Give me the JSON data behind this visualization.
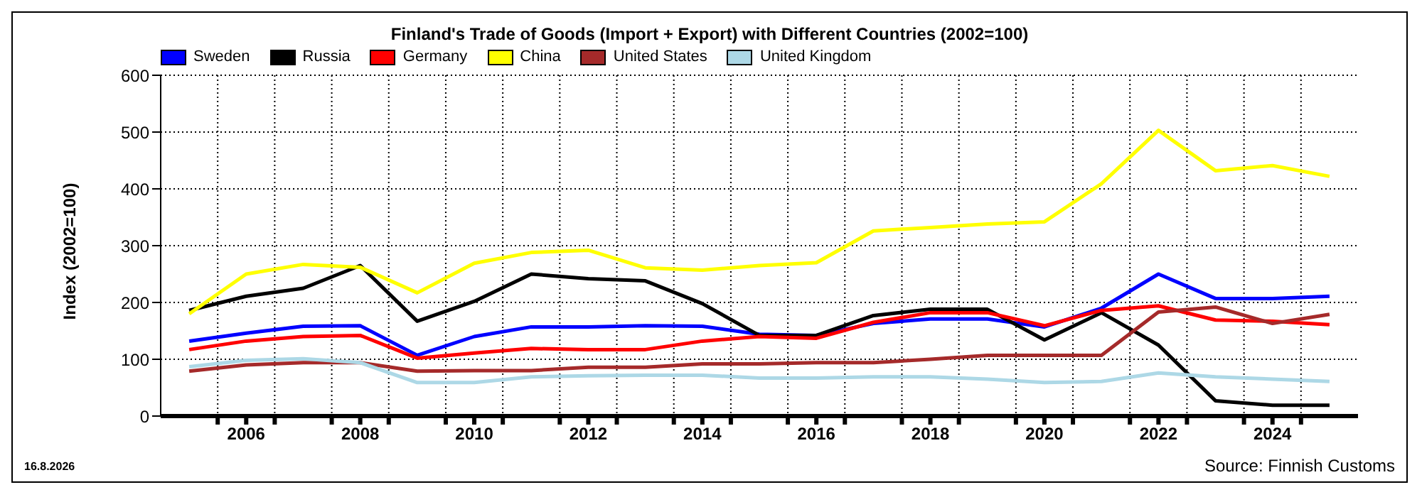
{
  "chart_data": {
    "type": "line",
    "title": "Finland's Trade of Goods (Import + Export) with Different Countries (2002=100)",
    "ylabel": "Index (2002=100)",
    "x": [
      2005,
      2006,
      2007,
      2008,
      2009,
      2010,
      2011,
      2012,
      2013,
      2014,
      2015,
      2016,
      2017,
      2018,
      2019,
      2020,
      2021,
      2022,
      2023,
      2024,
      2025
    ],
    "series": [
      {
        "name": "Sweden",
        "color": "#0000ff",
        "values": [
          132,
          146,
          158,
          159,
          107,
          140,
          157,
          157,
          159,
          158,
          144,
          142,
          163,
          171,
          171,
          157,
          190,
          250,
          207,
          207,
          211
        ]
      },
      {
        "name": "Russia",
        "color": "#000000",
        "values": [
          186,
          211,
          225,
          265,
          167,
          202,
          250,
          242,
          238,
          198,
          142,
          142,
          177,
          188,
          188,
          134,
          182,
          125,
          27,
          19,
          19
        ]
      },
      {
        "name": "Germany",
        "color": "#ff0000",
        "values": [
          117,
          132,
          140,
          142,
          102,
          111,
          119,
          117,
          117,
          132,
          140,
          137,
          165,
          182,
          182,
          159,
          186,
          194,
          169,
          167,
          161
        ]
      },
      {
        "name": "China",
        "color": "#ffff00",
        "values": [
          180,
          250,
          267,
          262,
          217,
          269,
          288,
          292,
          261,
          257,
          265,
          270,
          326,
          332,
          338,
          342,
          409,
          503,
          432,
          441,
          422
        ]
      },
      {
        "name": "United States",
        "color": "#a52a2a",
        "values": [
          79,
          90,
          94,
          94,
          79,
          80,
          80,
          86,
          86,
          92,
          92,
          94,
          94,
          100,
          107,
          107,
          107,
          183,
          192,
          163,
          179
        ]
      },
      {
        "name": "United Kingdom",
        "color": "#add8e6",
        "values": [
          87,
          98,
          101,
          94,
          59,
          59,
          69,
          71,
          72,
          72,
          67,
          67,
          69,
          69,
          65,
          59,
          61,
          76,
          69,
          65,
          61
        ]
      }
    ],
    "xlim": [
      2004.5,
      2025.5
    ],
    "xticks": [
      {
        "value": 2005.5,
        "label": null
      },
      {
        "value": 2006,
        "label": "2006"
      },
      {
        "value": 2006.5,
        "label": null
      },
      {
        "value": 2007.5,
        "label": null
      },
      {
        "value": 2008,
        "label": "2008"
      },
      {
        "value": 2008.5,
        "label": null
      },
      {
        "value": 2009.5,
        "label": null
      },
      {
        "value": 2010,
        "label": "2010"
      },
      {
        "value": 2010.5,
        "label": null
      },
      {
        "value": 2011.5,
        "label": null
      },
      {
        "value": 2012,
        "label": "2012"
      },
      {
        "value": 2012.5,
        "label": null
      },
      {
        "value": 2013.5,
        "label": null
      },
      {
        "value": 2014,
        "label": "2014"
      },
      {
        "value": 2014.5,
        "label": null
      },
      {
        "value": 2015.5,
        "label": null
      },
      {
        "value": 2016,
        "label": "2016"
      },
      {
        "value": 2016.5,
        "label": null
      },
      {
        "value": 2017.5,
        "label": null
      },
      {
        "value": 2018,
        "label": "2018"
      },
      {
        "value": 2018.5,
        "label": null
      },
      {
        "value": 2019.5,
        "label": null
      },
      {
        "value": 2020,
        "label": "2020"
      },
      {
        "value": 2020.5,
        "label": null
      },
      {
        "value": 2021.5,
        "label": null
      },
      {
        "value": 2022,
        "label": "2022"
      },
      {
        "value": 2022.5,
        "label": null
      },
      {
        "value": 2023.5,
        "label": null
      },
      {
        "value": 2024,
        "label": "2024"
      },
      {
        "value": 2024.5,
        "label": null
      }
    ],
    "ylim": [
      0,
      600
    ],
    "yticks": [
      0,
      100,
      200,
      300,
      400,
      500,
      600
    ],
    "grid": true,
    "legend": "top left",
    "marker": "none",
    "line_style": "solid",
    "annotations": [
      "16.8.2026",
      "Source: Finnish Customs"
    ]
  }
}
